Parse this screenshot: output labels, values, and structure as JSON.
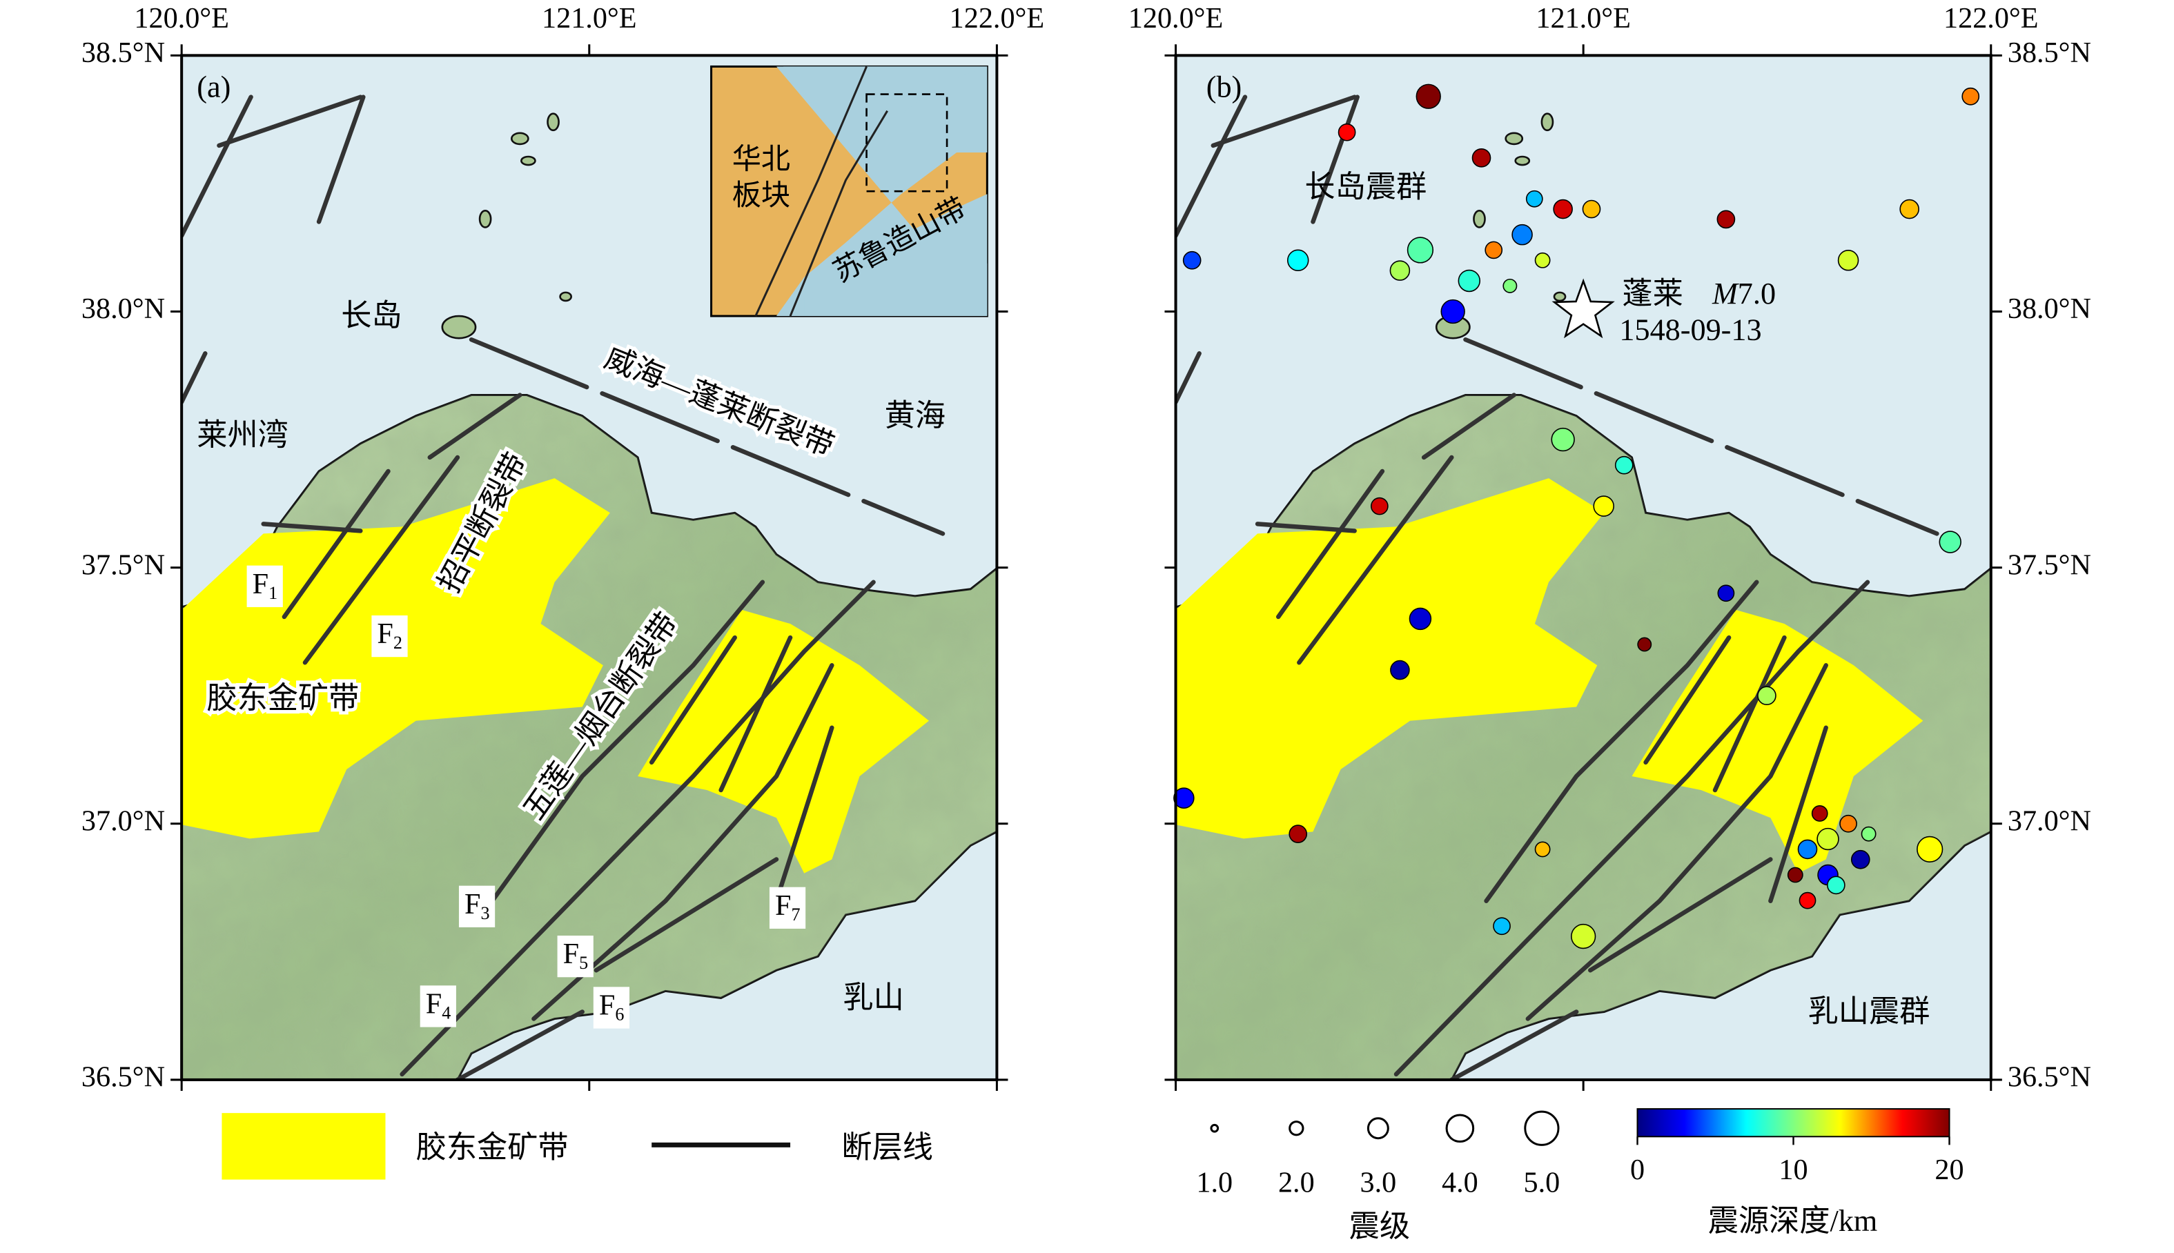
{
  "axes": {
    "xlim": [
      120,
      122
    ],
    "ylim": [
      36.5,
      38.5
    ],
    "xticks": [
      {
        "value": 120,
        "label": "120.0°E"
      },
      {
        "value": 121,
        "label": "121.0°E"
      },
      {
        "value": 122,
        "label": "122.0°E"
      }
    ],
    "yticks": [
      {
        "value": 36.5,
        "label": "36.5°N"
      },
      {
        "value": 37,
        "label": "37.0°N"
      },
      {
        "value": 37.5,
        "label": "37.5°N"
      },
      {
        "value": 38,
        "label": "38.0°N"
      },
      {
        "value": 38.5,
        "label": "38.5°N"
      }
    ]
  },
  "panel_a": {
    "label": "(a)",
    "places": [
      "长岛",
      "莱州湾",
      "黄海",
      "乳山"
    ],
    "structures": [
      "威海—蓬莱断裂带",
      "招平断裂带",
      "五莲—烟台断裂带",
      "胶东金矿带"
    ],
    "faults": [
      {
        "main": "F",
        "sub": "1"
      },
      {
        "main": "F",
        "sub": "2"
      },
      {
        "main": "F",
        "sub": "3"
      },
      {
        "main": "F",
        "sub": "4"
      },
      {
        "main": "F",
        "sub": "5"
      },
      {
        "main": "F",
        "sub": "6"
      },
      {
        "main": "F",
        "sub": "7"
      }
    ],
    "inset": {
      "block": [
        "华北",
        "板块"
      ],
      "belt": "苏鲁造山带"
    },
    "legend": [
      "胶东金矿带",
      "断层线"
    ]
  },
  "panel_b": {
    "label": "(b)",
    "swarms": [
      "长岛震群",
      "乳山震群"
    ],
    "historic_event": {
      "name": "蓬莱",
      "mag_symbol": "M",
      "mag_text": "7.0",
      "date": "1548-09-13",
      "lon": 121.0,
      "lat": 38.0
    },
    "earthquakes": {
      "lon": [
        120.72,
        120.78,
        120.85,
        120.9,
        120.95,
        120.68,
        120.82,
        120.88,
        121.02,
        120.6,
        120.55,
        120.75,
        120.62,
        120.42,
        120.3,
        120.04,
        120.5,
        120.6,
        120.55,
        120.02,
        120.3,
        120.95,
        121.05,
        121.1,
        121.35,
        121.15,
        121.45,
        120.9,
        120.8,
        121.0,
        121.9,
        121.85,
        121.8,
        121.65,
        121.35,
        121.95,
        121.55,
        121.6,
        121.65,
        121.58,
        121.62,
        121.52,
        121.68,
        121.6,
        121.55,
        121.7
      ],
      "lat": [
        38.06,
        38.12,
        38.15,
        38.1,
        38.2,
        38.0,
        38.05,
        38.22,
        38.2,
        38.12,
        38.08,
        38.3,
        38.42,
        38.35,
        38.1,
        38.1,
        37.62,
        37.4,
        37.3,
        37.05,
        36.98,
        37.75,
        37.62,
        37.7,
        37.45,
        37.35,
        37.25,
        36.95,
        36.8,
        36.78,
        37.55,
        36.95,
        38.2,
        38.1,
        38.18,
        38.42,
        36.95,
        36.9,
        37.0,
        37.02,
        36.88,
        36.9,
        36.93,
        36.97,
        36.85,
        36.98
      ],
      "magnitude": [
        3.2,
        2.5,
        3.0,
        2.2,
        2.8,
        3.5,
        2.0,
        2.4,
        2.6,
        3.8,
        2.9,
        2.7,
        3.6,
        2.5,
        3.1,
        2.6,
        2.5,
        3.2,
        2.8,
        3.0,
        2.6,
        3.4,
        3.0,
        2.6,
        2.4,
        2.0,
        2.7,
        2.2,
        2.5,
        3.6,
        3.2,
        3.8,
        2.8,
        3.0,
        2.6,
        2.5,
        2.8,
        3.0,
        2.5,
        2.3,
        2.6,
        2.2,
        2.7,
        3.2,
        2.4,
        2.1
      ],
      "depth": [
        8,
        15,
        5,
        12,
        18,
        3,
        10,
        6,
        14,
        9,
        11,
        19,
        20,
        17,
        7,
        4,
        18,
        2,
        1,
        3,
        19,
        10,
        13,
        8,
        2,
        20,
        11,
        14,
        6,
        12,
        9,
        13,
        14,
        12,
        19,
        15,
        5,
        3,
        15,
        19,
        8,
        20,
        1,
        12,
        17,
        10
      ]
    },
    "magnitude_legend": {
      "title": "震级",
      "ticks": [
        {
          "value": 1,
          "label": "1.0"
        },
        {
          "value": 2,
          "label": "2.0"
        },
        {
          "value": 3,
          "label": "3.0"
        },
        {
          "value": 4,
          "label": "4.0"
        },
        {
          "value": 5,
          "label": "5.0"
        }
      ]
    },
    "depth_colorbar": {
      "title": "震源深度/km",
      "lim": [
        0,
        20
      ],
      "ticks": [
        0,
        10,
        20
      ]
    }
  }
}
